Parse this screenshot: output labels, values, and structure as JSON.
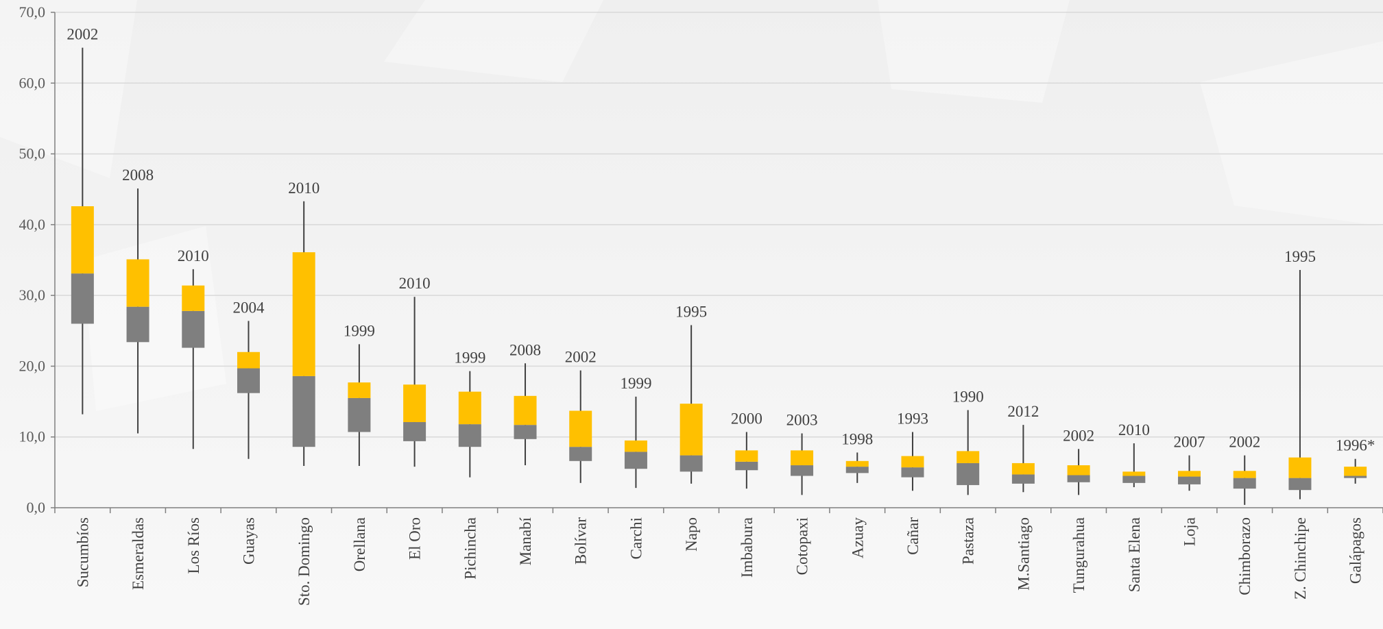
{
  "chart_data": {
    "type": "box",
    "title": "",
    "xlabel": "",
    "ylabel": "",
    "ylim": [
      0,
      70
    ],
    "y_ticks": [
      "0,0",
      "10,0",
      "20,0",
      "30,0",
      "40,0",
      "50,0",
      "60,0",
      "70,0"
    ],
    "grid": true,
    "legend": "none",
    "colors": {
      "upper_box": "#FFC000",
      "lower_box": "#7F7F7F",
      "whisker": "#404040",
      "grid": "#d9d9d9",
      "text": "#404040"
    },
    "categories": [
      "Sucumbíos",
      "Esmeraldas",
      "Los Ríos",
      "Guayas",
      "Sto. Domingo",
      "Orellana",
      "El Oro",
      "Pichincha",
      "Manabí",
      "Bolívar",
      "Carchi",
      "Napo",
      "Imbabura",
      "Cotopaxi",
      "Azuay",
      "Cañar",
      "Pastaza",
      "M.Santiago",
      "Tungurahua",
      "Santa Elena",
      "Loja",
      "Chimborazo",
      "Z. Chinchipe",
      "Galápagos"
    ],
    "series": [
      {
        "min": 13.2,
        "q1": 26.0,
        "median": 33.1,
        "q3": 42.6,
        "max": 65.0,
        "max_year": "2002"
      },
      {
        "min": 10.5,
        "q1": 23.4,
        "median": 28.4,
        "q3": 35.1,
        "max": 45.1,
        "max_year": "2008"
      },
      {
        "min": 8.3,
        "q1": 22.6,
        "median": 27.8,
        "q3": 31.4,
        "max": 33.7,
        "max_year": "2010"
      },
      {
        "min": 6.9,
        "q1": 16.2,
        "median": 19.7,
        "q3": 22.0,
        "max": 26.4,
        "max_year": "2004"
      },
      {
        "min": 5.9,
        "q1": 8.6,
        "median": 18.6,
        "q3": 36.1,
        "max": 43.3,
        "max_year": "2010"
      },
      {
        "min": 5.9,
        "q1": 10.7,
        "median": 15.5,
        "q3": 17.7,
        "max": 23.1,
        "max_year": "1999"
      },
      {
        "min": 5.8,
        "q1": 9.4,
        "median": 12.1,
        "q3": 17.4,
        "max": 29.8,
        "max_year": "2010"
      },
      {
        "min": 4.3,
        "q1": 8.6,
        "median": 11.8,
        "q3": 16.4,
        "max": 19.3,
        "max_year": "1999"
      },
      {
        "min": 6.0,
        "q1": 9.7,
        "median": 11.7,
        "q3": 15.8,
        "max": 20.4,
        "max_year": "2008"
      },
      {
        "min": 3.5,
        "q1": 6.6,
        "median": 8.6,
        "q3": 13.7,
        "max": 19.4,
        "max_year": "2002"
      },
      {
        "min": 2.8,
        "q1": 5.5,
        "median": 7.9,
        "q3": 9.5,
        "max": 15.7,
        "max_year": "1999"
      },
      {
        "min": 3.4,
        "q1": 5.1,
        "median": 7.4,
        "q3": 14.7,
        "max": 25.8,
        "max_year": "1995"
      },
      {
        "min": 2.7,
        "q1": 5.3,
        "median": 6.5,
        "q3": 8.1,
        "max": 10.7,
        "max_year": "2000"
      },
      {
        "min": 1.8,
        "q1": 4.5,
        "median": 6.0,
        "q3": 8.1,
        "max": 10.5,
        "max_year": "2003"
      },
      {
        "min": 3.5,
        "q1": 4.9,
        "median": 5.8,
        "q3": 6.6,
        "max": 7.8,
        "max_year": "1998"
      },
      {
        "min": 2.4,
        "q1": 4.3,
        "median": 5.7,
        "q3": 7.3,
        "max": 10.7,
        "max_year": "1993"
      },
      {
        "min": 1.8,
        "q1": 3.2,
        "median": 6.3,
        "q3": 8.0,
        "max": 13.8,
        "max_year": "1990"
      },
      {
        "min": 2.2,
        "q1": 3.4,
        "median": 4.7,
        "q3": 6.3,
        "max": 11.7,
        "max_year": "2012"
      },
      {
        "min": 1.8,
        "q1": 3.6,
        "median": 4.6,
        "q3": 6.0,
        "max": 8.3,
        "max_year": "2002"
      },
      {
        "min": 2.9,
        "q1": 3.5,
        "median": 4.5,
        "q3": 5.1,
        "max": 9.1,
        "max_year": "2010"
      },
      {
        "min": 2.4,
        "q1": 3.3,
        "median": 4.4,
        "q3": 5.2,
        "max": 7.4,
        "max_year": "2007"
      },
      {
        "min": 0.4,
        "q1": 2.7,
        "median": 4.2,
        "q3": 5.2,
        "max": 7.4,
        "max_year": "2002"
      },
      {
        "min": 1.2,
        "q1": 2.5,
        "median": 4.2,
        "q3": 7.1,
        "max": 33.6,
        "max_year": "1995"
      },
      {
        "min": 3.4,
        "q1": 4.2,
        "median": 4.5,
        "q3": 5.8,
        "max": 6.9,
        "max_year": "1996*"
      }
    ]
  }
}
